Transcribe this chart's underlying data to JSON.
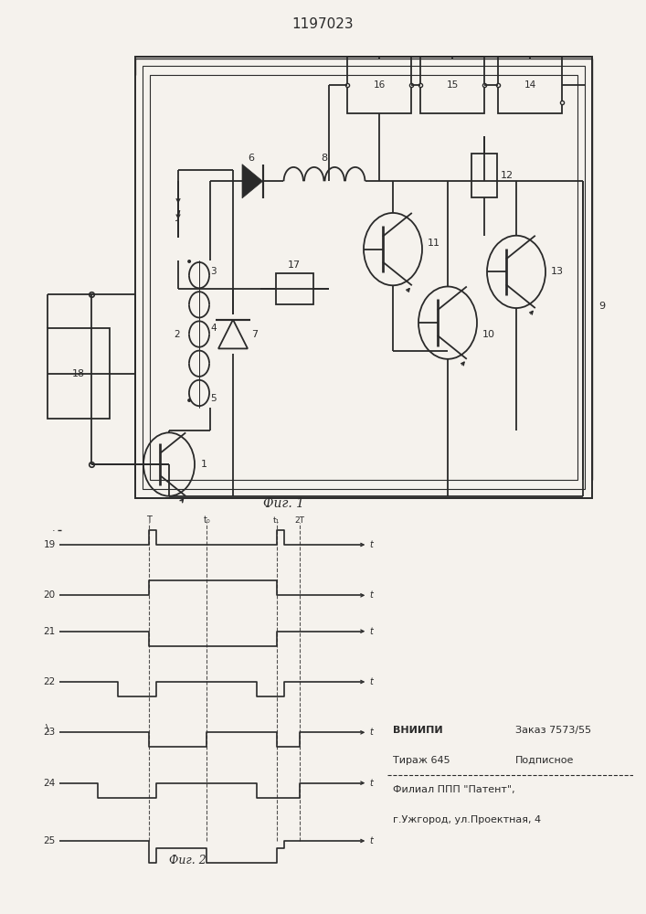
{
  "title": "1197023",
  "fig1_caption": "Фиг. 1",
  "fig2_caption": "Фиг. 2",
  "bg_color": "#f5f2ed",
  "line_color": "#2a2a2a",
  "waveform_labels": [
    "19",
    "20",
    "21",
    "22",
    "23",
    "24",
    "25"
  ],
  "vniipi_line1_left": "ВНИИПИ",
  "vniipi_line1_right": "Заказ 7573/55",
  "vniipi_line2_left": "Тираж 645",
  "vniipi_line2_right": "Подписное",
  "vniipi_line3": "Филиал ППП \"Патент\",",
  "vniipi_line4": "г.Ужгород, ул.Проектная, 4"
}
